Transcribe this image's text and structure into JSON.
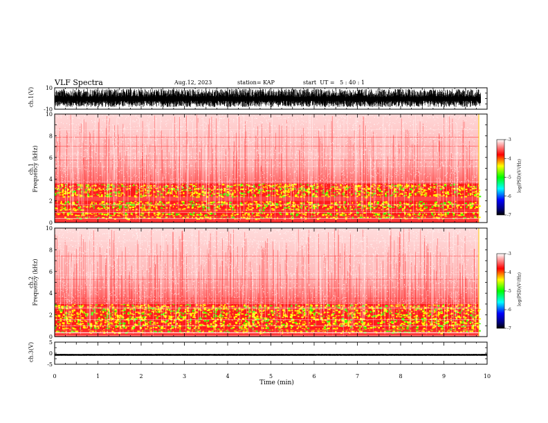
{
  "header": {
    "title": "VLF Spectra",
    "date": "Aug.12, 2023",
    "station": "station= KAP",
    "start": "start  UT =   5 : 40 : 1"
  },
  "chart_data": [
    {
      "type": "line",
      "name": "ch1-waveform",
      "ylabel": "ch.1(V)",
      "ylim": [
        -10,
        10
      ],
      "y_ticks": [
        "10",
        "-10"
      ],
      "xlim": [
        0,
        10
      ],
      "data_extent_min": 9.85,
      "amplitude_range": [
        -8,
        9
      ]
    },
    {
      "type": "heatmap",
      "name": "ch1-spectrogram",
      "ylabel_line1": "ch.1",
      "ylabel_line2": "Frequency  (kHz)",
      "ylim": [
        0,
        10
      ],
      "y_ticks": [
        "0",
        "2",
        "4",
        "6",
        "8",
        "10"
      ],
      "xlim": [
        0,
        10
      ],
      "enhanced_bands_khz": [
        [
          0.4,
          1.0
        ],
        [
          1.2,
          2.0
        ],
        [
          2.4,
          3.6
        ]
      ],
      "colorbar": {
        "label": "log(PSD)(V²/Hz)",
        "ticks": [
          "-3",
          "-4",
          "-5",
          "-6",
          "-7"
        ],
        "range": [
          -7,
          -3
        ]
      }
    },
    {
      "type": "heatmap",
      "name": "ch2-spectrogram",
      "ylabel_line1": "ch.2",
      "ylabel_line2": "Frequency  (kHz)",
      "ylim": [
        0,
        10
      ],
      "y_ticks": [
        "0",
        "2",
        "4",
        "6",
        "8",
        "10"
      ],
      "xlim": [
        0,
        10
      ],
      "enhanced_bands_khz": [
        [
          0.4,
          1.4
        ],
        [
          1.4,
          3.0
        ]
      ],
      "colorbar": {
        "label": "log(PSD)(V²/Hz)",
        "ticks": [
          "-3",
          "-4",
          "-5",
          "-6",
          "-7"
        ],
        "range": [
          -7,
          -3
        ]
      }
    },
    {
      "type": "line",
      "name": "ch3-waveform",
      "ylabel": "ch.3(V)",
      "ylim": [
        -5,
        5
      ],
      "y_ticks": [
        "5",
        "0",
        "-5"
      ],
      "xlim": [
        0,
        10
      ],
      "x_ticks": [
        "0",
        "1",
        "2",
        "3",
        "4",
        "5",
        "6",
        "7",
        "8",
        "9",
        "10"
      ],
      "xlabel": "Time  (min)",
      "amplitude_range": [
        -1.2,
        -0.3
      ]
    }
  ]
}
